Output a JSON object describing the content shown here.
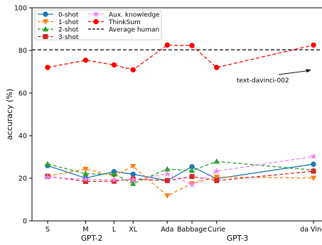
{
  "chart_data": {
    "type": "line",
    "title": "",
    "ylabel": "accuracy (%)",
    "xlabel": "",
    "ylim": [
      0,
      100
    ],
    "yticks": [
      0,
      20,
      40,
      60,
      80,
      100
    ],
    "categories": [
      "S",
      "M",
      "L",
      "XL",
      "Ada",
      "Babbage",
      "Curie",
      "da Vinci"
    ],
    "x_positions": [
      0,
      1,
      1.75,
      2.25,
      3.15,
      3.8,
      4.45,
      7
    ],
    "group_labels": [
      "GPT-2",
      "GPT-3"
    ],
    "grid": "off",
    "legend_position": "top-left",
    "series": [
      {
        "name": "0-shot",
        "color": "#1f77b4",
        "style": "solid",
        "marker": "circle",
        "values": [
          25.9,
          20.1,
          23.1,
          21.9,
          18.9,
          25.4,
          19.8,
          26.6
        ]
      },
      {
        "name": "1-shot",
        "color": "#ff7f0e",
        "style": "dashed",
        "marker": "triangle-down",
        "values": [
          21.0,
          24.3,
          21.2,
          25.6,
          11.8,
          17.5,
          20.6,
          20.1
        ]
      },
      {
        "name": "2-shot",
        "color": "#2ca02c",
        "style": "dashed",
        "marker": "triangle-up",
        "values": [
          26.7,
          22.1,
          21.9,
          17.5,
          24.3,
          23.6,
          27.9,
          23.8
        ]
      },
      {
        "name": "3-shot",
        "color": "#d62728",
        "style": "dashed",
        "marker": "square",
        "values": [
          20.9,
          18.5,
          18.6,
          19.6,
          18.9,
          20.8,
          18.9,
          23.3
        ]
      },
      {
        "name": "Aux. knowledge",
        "color": "#ee82ee",
        "style": "dashed",
        "marker": "star",
        "values": [
          20.5,
          19.5,
          19.3,
          19.3,
          22.0,
          17.0,
          23.3,
          30.2
        ]
      },
      {
        "name": "ThinkSum",
        "color": "#ff0000",
        "style": "dashed",
        "marker": "circle",
        "values": [
          72.0,
          75.4,
          73.2,
          70.9,
          82.5,
          82.3,
          72.0,
          82.5
        ]
      }
    ],
    "reference_lines": [
      {
        "name": "Average human",
        "value": 80.3,
        "color": "#000000",
        "style": "dashed"
      }
    ],
    "annotations": [
      {
        "text": "text-davinci-002",
        "points_to_category": "da Vinci",
        "points_to_value": 70.9
      }
    ]
  }
}
